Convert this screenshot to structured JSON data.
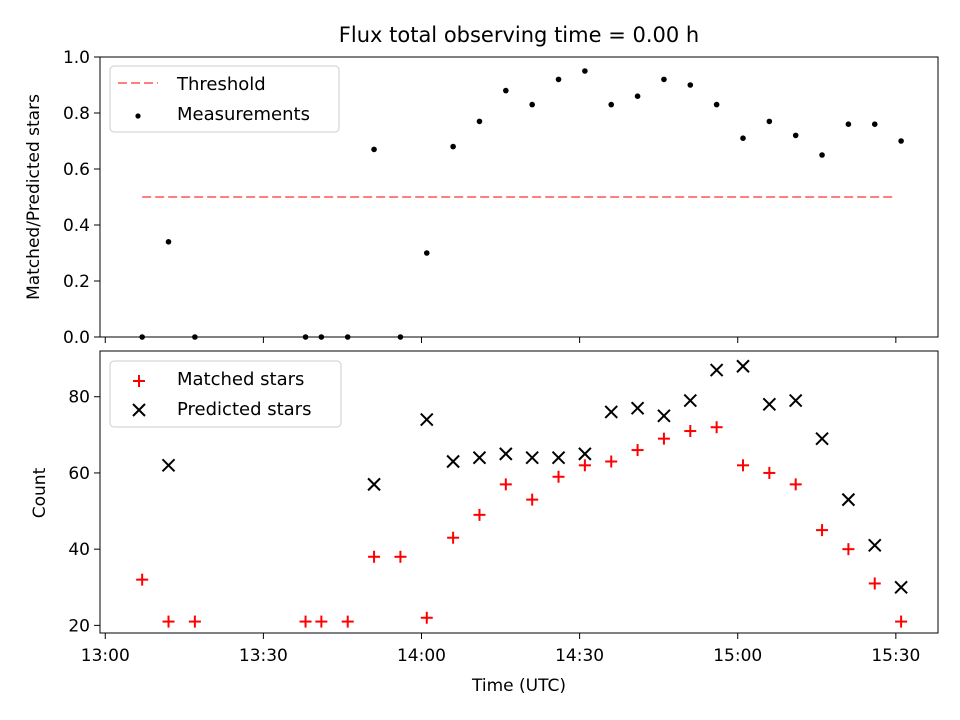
{
  "title": "Flux total observing time = 0.00 h",
  "chart_data": [
    {
      "type": "scatter",
      "ylabel": "Matched/Predicted stars",
      "ylim": [
        0,
        1.0
      ],
      "yticks": [
        0.0,
        0.2,
        0.4,
        0.6,
        0.8,
        1.0
      ],
      "ytick_labels": [
        "0.0",
        "0.2",
        "0.4",
        "0.6",
        "0.8",
        "1.0"
      ],
      "xlim_minutes": [
        -1,
        158
      ],
      "xticks_minutes": [
        0,
        30,
        60,
        90,
        120,
        150
      ],
      "legend_position": "top-left",
      "threshold": {
        "name": "Threshold",
        "value": 0.5,
        "x_range": [
          7,
          150
        ],
        "color": "#ff7f7f",
        "style": "dashed"
      },
      "series": [
        {
          "name": "Measurements",
          "marker": "dot",
          "color": "#000000",
          "x": [
            7,
            12,
            17,
            38,
            41,
            46,
            51,
            56,
            61,
            66,
            71,
            76,
            81,
            86,
            91,
            96,
            101,
            106,
            111,
            116,
            121,
            126,
            131,
            136,
            141,
            146,
            151
          ],
          "y": [
            0.0,
            0.34,
            0.0,
            0.0,
            0.0,
            0.0,
            0.67,
            0.0,
            0.3,
            0.68,
            0.77,
            0.88,
            0.83,
            0.92,
            0.95,
            0.83,
            0.86,
            0.92,
            0.9,
            0.83,
            0.71,
            0.77,
            0.72,
            0.65,
            0.76,
            0.76,
            0.7
          ]
        }
      ]
    },
    {
      "type": "scatter",
      "xlabel": "Time (UTC)",
      "ylabel": "Count",
      "ylim": [
        18,
        92
      ],
      "yticks": [
        20,
        40,
        60,
        80
      ],
      "ytick_labels": [
        "20",
        "40",
        "60",
        "80"
      ],
      "xlim_minutes": [
        -1,
        158
      ],
      "xticks_minutes": [
        0,
        30,
        60,
        90,
        120,
        150
      ],
      "xtick_labels": [
        "13:00",
        "13:30",
        "14:00",
        "14:30",
        "15:00",
        "15:30"
      ],
      "legend_position": "top-left",
      "series": [
        {
          "name": "Matched stars",
          "marker": "plus",
          "color": "#ff0000",
          "x": [
            7,
            12,
            17,
            38,
            41,
            46,
            51,
            56,
            61,
            66,
            71,
            76,
            81,
            86,
            91,
            96,
            101,
            106,
            111,
            116,
            121,
            126,
            131,
            136,
            141,
            146,
            151
          ],
          "y": [
            32,
            21,
            21,
            21,
            21,
            21,
            38,
            38,
            22,
            43,
            49,
            57,
            53,
            59,
            62,
            63,
            66,
            69,
            71,
            72,
            62,
            60,
            57,
            45,
            40,
            31,
            21
          ]
        },
        {
          "name": "Predicted stars",
          "marker": "x",
          "color": "#000000",
          "x": [
            12,
            51,
            61,
            66,
            71,
            76,
            81,
            86,
            91,
            96,
            101,
            106,
            111,
            116,
            121,
            126,
            131,
            136,
            141,
            146,
            151
          ],
          "y": [
            62,
            57,
            74,
            63,
            64,
            65,
            64,
            64,
            65,
            76,
            77,
            75,
            79,
            87,
            88,
            78,
            79,
            69,
            53,
            41,
            30
          ]
        }
      ]
    }
  ]
}
